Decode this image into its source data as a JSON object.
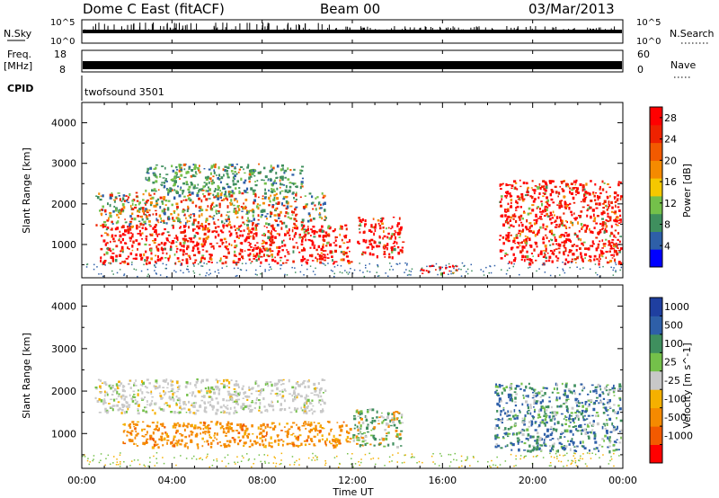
{
  "header": {
    "title": "Dome C East (fitACF)",
    "beam": "Beam 00",
    "date": "03/Mar/2013"
  },
  "status_panels": {
    "nsky_label": "N.Sky",
    "nsky_top_tick": "10^5",
    "nsky_bottom_tick": "10^0",
    "nsearch_label": "N.Search",
    "nsearch_top_tick": "10^5",
    "nsearch_bottom_tick": "10^0",
    "freq_label_line1": "Freq.",
    "freq_label_line2": "[MHz]",
    "freq_top_tick": "18",
    "freq_bottom_tick": "8",
    "nave_label": "Nave",
    "nave_top_tick": "60",
    "nave_bottom_tick": "0",
    "cpid_label": "CPID",
    "cpid_value": "twofsound 3501"
  },
  "colors": {
    "power": [
      "#0000ff",
      "#2e5fa8",
      "#3f8f5e",
      "#74c04a",
      "#f5c800",
      "#f58a00",
      "#f25a00",
      "#ee2200",
      "#ff0000"
    ],
    "velocity": [
      "#ff0000",
      "#f25a00",
      "#f58a00",
      "#f5b000",
      "#c8c8c8",
      "#74c04a",
      "#3f8f5e",
      "#2e5fa8",
      "#1f3fa0"
    ]
  },
  "chart_data": [
    {
      "type": "heatmap",
      "title": "",
      "xlabel": "",
      "ylabel": "Slant Range [km]",
      "xlim": [
        "00:00",
        "24:00"
      ],
      "ylim": [
        180,
        4500
      ],
      "x_ticks": [
        "00:00",
        "04:00",
        "08:00",
        "12:00",
        "16:00",
        "20:00",
        "00:00"
      ],
      "y_ticks": [
        1000,
        2000,
        3000,
        4000
      ],
      "colorbar": {
        "label": "Power [dB]",
        "range": [
          0,
          30
        ],
        "ticks": [
          4,
          8,
          12,
          16,
          20,
          24,
          28
        ]
      },
      "regions": [
        {
          "t": [
            0.8,
            11.9
          ],
          "range": [
            550,
            1500
          ],
          "level": "strong",
          "value_db": 24
        },
        {
          "t": [
            0.6,
            10.8
          ],
          "range": [
            1500,
            2300
          ],
          "level": "medium",
          "value_db": 16
        },
        {
          "t": [
            2.8,
            9.8
          ],
          "range": [
            2300,
            3000
          ],
          "level": "weak",
          "value_db": 10
        },
        {
          "t": [
            12.2,
            14.2
          ],
          "range": [
            700,
            1700
          ],
          "level": "strong",
          "value_db": 22
        },
        {
          "t": [
            15.0,
            16.6
          ],
          "range": [
            300,
            500
          ],
          "level": "strong",
          "value_db": 24
        },
        {
          "t": [
            18.5,
            23.9
          ],
          "range": [
            550,
            2600
          ],
          "level": "strong",
          "value_db": 26
        }
      ]
    },
    {
      "type": "heatmap",
      "title": "",
      "xlabel": "Time UT",
      "ylabel": "Slant Range [km]",
      "xlim": [
        "00:00",
        "24:00"
      ],
      "ylim": [
        180,
        4500
      ],
      "x_ticks": [
        "00:00",
        "04:00",
        "08:00",
        "12:00",
        "16:00",
        "20:00",
        "00:00"
      ],
      "y_ticks": [
        1000,
        2000,
        3000,
        4000
      ],
      "colorbar": {
        "label": "Velocity [m s^-1]",
        "ticks": [
          "1000",
          "500",
          "100",
          "25",
          "-25",
          "-100",
          "-500",
          "-1000"
        ]
      },
      "regions": [
        {
          "t": [
            1.8,
            11.9
          ],
          "range": [
            700,
            1300
          ],
          "level": "receding",
          "value_ms": -300
        },
        {
          "t": [
            0.5,
            10.8
          ],
          "range": [
            1500,
            2300
          ],
          "level": "near-zero",
          "value_ms": 0
        },
        {
          "t": [
            12.0,
            14.3
          ],
          "range": [
            700,
            1600
          ],
          "level": "mixed",
          "value_ms": 100
        },
        {
          "t": [
            18.3,
            23.9
          ],
          "range": [
            600,
            2200
          ],
          "level": "approaching",
          "value_ms": 500
        }
      ]
    }
  ]
}
